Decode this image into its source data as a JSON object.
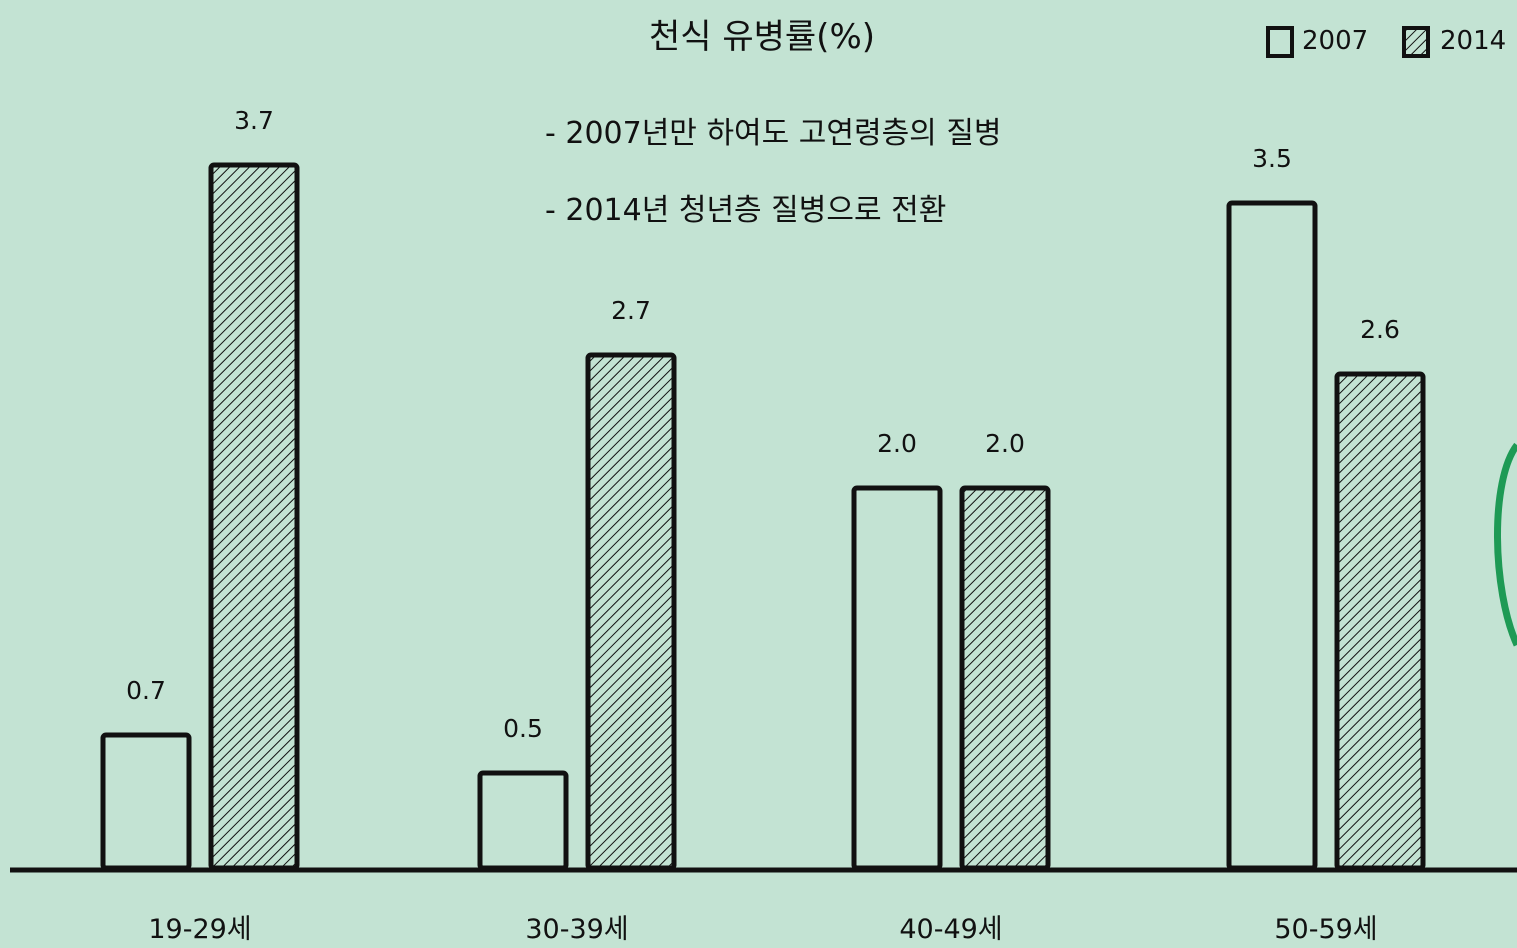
{
  "chart_data": {
    "type": "bar",
    "title": "천식 유병률(%)",
    "annotations": [
      "- 2007년만 하여도 고연령층의 질병",
      "- 2014년 청년층 질병으로 전환"
    ],
    "categories": [
      "19-29세",
      "30-39세",
      "40-49세",
      "50-59세"
    ],
    "series": [
      {
        "name": "2007",
        "values": [
          0.7,
          0.5,
          2.0,
          3.5
        ],
        "value_labels": [
          "0.7",
          "0.5",
          "2.0",
          "3.5"
        ],
        "fill": "none"
      },
      {
        "name": "2014",
        "values": [
          3.7,
          2.7,
          2.0,
          2.6
        ],
        "value_labels": [
          "3.7",
          "2.7",
          "2.0",
          "2.6"
        ],
        "fill": "hatched"
      }
    ],
    "ylim": [
      0,
      3.7
    ],
    "xlabel": "",
    "ylabel": "",
    "grid": false,
    "legend": "top-right"
  },
  "colors": {
    "background": "#c3e3d3",
    "ink": "#111111",
    "accent_arc": "#1e9a55"
  }
}
